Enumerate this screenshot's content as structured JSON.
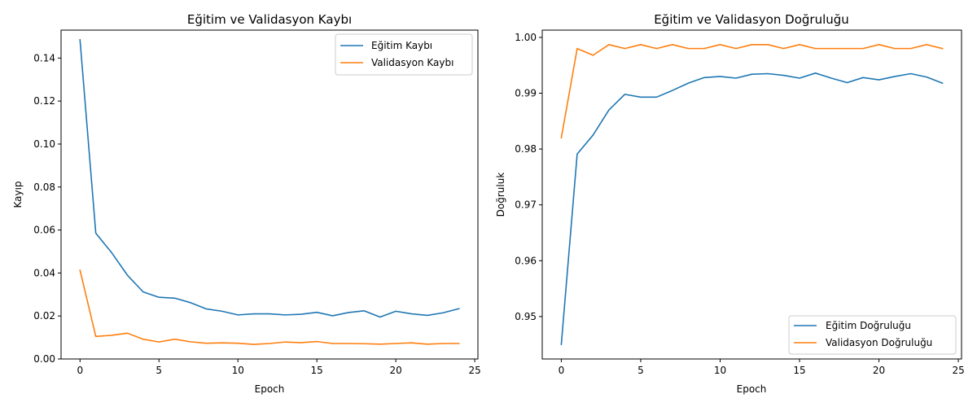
{
  "chart_data": [
    {
      "type": "line",
      "title": "Eğitim ve Validasyon Kaybı",
      "xlabel": "Epoch",
      "ylabel": "Kayıp",
      "xlim": [
        -1.2,
        25.2
      ],
      "ylim": [
        0.0,
        0.153
      ],
      "xticks": [
        0,
        5,
        10,
        15,
        20,
        25
      ],
      "xtick_labels": [
        "0",
        "5",
        "10",
        "15",
        "20",
        "25"
      ],
      "yticks": [
        0.0,
        0.02,
        0.04,
        0.06,
        0.08,
        0.1,
        0.12,
        0.14
      ],
      "ytick_labels": [
        "0.00",
        "0.02",
        "0.04",
        "0.06",
        "0.08",
        "0.10",
        "0.12",
        "0.14"
      ],
      "legend_position": "upper right",
      "x": [
        0,
        1,
        2,
        3,
        4,
        5,
        6,
        7,
        8,
        9,
        10,
        11,
        12,
        13,
        14,
        15,
        16,
        17,
        18,
        19,
        20,
        21,
        22,
        23,
        24
      ],
      "series": [
        {
          "name": "Eğitim Kaybı",
          "color": "#1f77b4",
          "values": [
            0.1485,
            0.0585,
            0.0495,
            0.039,
            0.0312,
            0.0287,
            0.0283,
            0.0262,
            0.0233,
            0.0222,
            0.0205,
            0.021,
            0.021,
            0.0205,
            0.0208,
            0.0217,
            0.0201,
            0.0216,
            0.0224,
            0.0195,
            0.0222,
            0.021,
            0.0203,
            0.0215,
            0.0234
          ]
        },
        {
          "name": "Validasyon Kaybı",
          "color": "#ff7f0e",
          "values": [
            0.0413,
            0.0105,
            0.011,
            0.012,
            0.0092,
            0.0079,
            0.0092,
            0.008,
            0.0073,
            0.0075,
            0.0073,
            0.0068,
            0.0072,
            0.0079,
            0.0076,
            0.0081,
            0.0072,
            0.0072,
            0.0071,
            0.0069,
            0.0072,
            0.0075,
            0.0069,
            0.0072,
            0.0072
          ]
        }
      ]
    },
    {
      "type": "line",
      "title": "Eğitim ve Validasyon Doğruluğu",
      "xlabel": "Epoch",
      "ylabel": "Doğruluk",
      "xlim": [
        -1.2,
        25.2
      ],
      "ylim": [
        0.9424,
        1.0013
      ],
      "xticks": [
        0,
        5,
        10,
        15,
        20,
        25
      ],
      "xtick_labels": [
        "0",
        "5",
        "10",
        "15",
        "20",
        "25"
      ],
      "yticks": [
        0.95,
        0.96,
        0.97,
        0.98,
        0.99,
        1.0
      ],
      "ytick_labels": [
        "0.95",
        "0.96",
        "0.97",
        "0.98",
        "0.99",
        "1.00"
      ],
      "legend_position": "lower right",
      "x": [
        0,
        1,
        2,
        3,
        4,
        5,
        6,
        7,
        8,
        9,
        10,
        11,
        12,
        13,
        14,
        15,
        16,
        17,
        18,
        19,
        20,
        21,
        22,
        23,
        24
      ],
      "series": [
        {
          "name": "Eğitim Doğruluğu",
          "color": "#1f77b4",
          "values": [
            0.945,
            0.9791,
            0.9825,
            0.987,
            0.9898,
            0.9893,
            0.9893,
            0.9905,
            0.9918,
            0.9928,
            0.993,
            0.9927,
            0.9934,
            0.9935,
            0.9932,
            0.9927,
            0.9936,
            0.9927,
            0.9919,
            0.9928,
            0.9924,
            0.993,
            0.9935,
            0.9929,
            0.9918
          ]
        },
        {
          "name": "Validasyon Doğruluğu",
          "color": "#ff7f0e",
          "values": [
            0.982,
            0.998,
            0.9968,
            0.9987,
            0.998,
            0.9987,
            0.998,
            0.9987,
            0.998,
            0.998,
            0.9987,
            0.998,
            0.9987,
            0.9987,
            0.998,
            0.9987,
            0.998,
            0.998,
            0.998,
            0.998,
            0.9987,
            0.998,
            0.998,
            0.9987,
            0.998
          ]
        }
      ]
    }
  ]
}
